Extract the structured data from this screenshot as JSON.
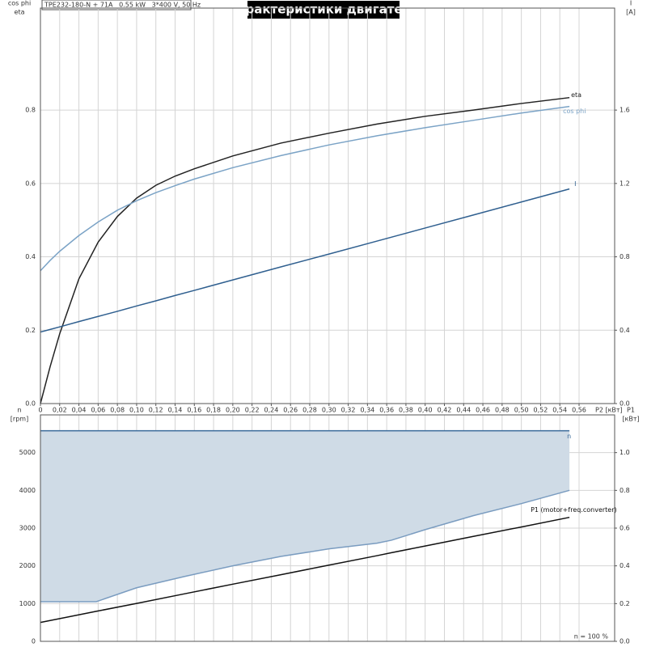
{
  "chart_data": [
    {
      "type": "line",
      "title": "Характеристики двигателя",
      "subtitle": "TPE232-180-N + 71A   0.55 kW   3*400 V, 50 Hz",
      "ylabel": [
        "cos phi",
        "eta"
      ],
      "y2label": [
        "I",
        "[A]"
      ],
      "xlabel": "P2 [кВт]",
      "x": [
        0,
        0.01,
        0.02,
        0.04,
        0.06,
        0.08,
        0.1,
        0.12,
        0.14,
        0.16,
        0.2,
        0.25,
        0.3,
        0.35,
        0.4,
        0.45,
        0.5,
        0.55
      ],
      "series": [
        {
          "name": "eta",
          "color": "#222222",
          "values": [
            0,
            0.1,
            0.19,
            0.34,
            0.44,
            0.51,
            0.56,
            0.595,
            0.62,
            0.64,
            0.675,
            0.71,
            0.737,
            0.762,
            0.783,
            0.8,
            0.818,
            0.834
          ]
        },
        {
          "name": "cos phi",
          "color": "#7ba3c6",
          "values": [
            0.362,
            0.39,
            0.415,
            0.458,
            0.495,
            0.527,
            0.553,
            0.575,
            0.594,
            0.612,
            0.643,
            0.676,
            0.705,
            0.73,
            0.752,
            0.772,
            0.792,
            0.81
          ]
        },
        {
          "name": "I",
          "color": "#2f5f8f",
          "axis": "y2",
          "values": [
            0.39,
            0.404,
            0.418,
            0.447,
            0.475,
            0.503,
            0.532,
            0.56,
            0.589,
            0.617,
            0.674,
            0.745,
            0.815,
            0.886,
            0.957,
            1.028,
            1.099,
            1.17
          ]
        }
      ],
      "xlim": [
        0,
        0.597
      ],
      "xticks": [
        0,
        {
          "value": 0.02,
          "label": "0,02"
        },
        {
          "value": 0.04,
          "label": "0,04"
        },
        {
          "value": 0.06,
          "label": "0,06"
        },
        {
          "value": 0.08,
          "label": "0,08"
        },
        {
          "value": 0.1,
          "label": "0,10"
        },
        {
          "value": 0.12,
          "label": "0,12"
        },
        {
          "value": 0.14,
          "label": "0,14"
        },
        {
          "value": 0.16,
          "label": "0,16"
        },
        {
          "value": 0.18,
          "label": "0,18"
        },
        {
          "value": 0.2,
          "label": "0,20"
        },
        {
          "value": 0.22,
          "label": "0,22"
        },
        {
          "value": 0.24,
          "label": "0,24"
        },
        {
          "value": 0.26,
          "label": "0,26"
        },
        {
          "value": 0.28,
          "label": "0,28"
        },
        {
          "value": 0.3,
          "label": "0,30"
        },
        {
          "value": 0.32,
          "label": "0,32"
        },
        {
          "value": 0.34,
          "label": "0,34"
        },
        {
          "value": 0.36,
          "label": "0,36"
        },
        {
          "value": 0.38,
          "label": "0,38"
        },
        {
          "value": 0.4,
          "label": "0,40"
        },
        {
          "value": 0.42,
          "label": "0,42"
        },
        {
          "value": 0.44,
          "label": "0,44"
        },
        {
          "value": 0.46,
          "label": "0,46"
        },
        {
          "value": 0.48,
          "label": "0,48"
        },
        {
          "value": 0.5,
          "label": "0,50"
        },
        {
          "value": 0.52,
          "label": "0,52"
        },
        {
          "value": 0.54,
          "label": "0,54"
        },
        {
          "value": 0.56,
          "label": "0,56"
        }
      ],
      "ylim": [
        0,
        1.078
      ],
      "yticks": [
        {
          "value": 0,
          "label": "0.0"
        },
        0.2,
        0.4,
        0.6,
        0.8
      ],
      "y2lim": [
        0,
        2.156
      ],
      "y2ticks": [
        {
          "value": 0,
          "label": "0.0"
        },
        0.4,
        0.8,
        1.2,
        1.6
      ],
      "grid": true
    },
    {
      "type": "line",
      "ylabel": [
        "n",
        "[rpm]"
      ],
      "y2label": [
        "P1",
        "[кВт]"
      ],
      "annotation": "n = 100 %",
      "x": [
        0,
        0.058,
        0.1,
        0.15,
        0.2,
        0.25,
        0.3,
        0.35,
        0.365,
        0.4,
        0.45,
        0.5,
        0.55
      ],
      "series": [
        {
          "name": "n",
          "color": "#3a6a9a",
          "values": [
            5580,
            5580,
            5580,
            5580,
            5580,
            5580,
            5580,
            5580,
            5580,
            5580,
            5580,
            5580,
            5580
          ]
        },
        {
          "color": "#7a9cc0",
          "values": [
            1050,
            1050,
            1420,
            1720,
            2000,
            2250,
            2450,
            2600,
            2680,
            2960,
            3330,
            3650,
            4000
          ]
        },
        {
          "name": "P1 (motor+freq.converter)",
          "color": "#111111",
          "axis": "y2",
          "values": [
            0.1,
            0.159,
            0.201,
            0.252,
            0.303,
            0.353,
            0.404,
            0.454,
            0.47,
            0.505,
            0.556,
            0.606,
            0.657
          ]
        }
      ],
      "fill_between": [
        0,
        1
      ],
      "fill_color": "#cfdbe6",
      "xlim": [
        0,
        0.597
      ],
      "ylim": [
        0,
        6000
      ],
      "yticks": [
        0,
        1000,
        2000,
        3000,
        4000,
        5000
      ],
      "y2lim": [
        0,
        1.2
      ],
      "y2ticks": [
        {
          "value": 0,
          "label": "0.0"
        },
        0.2,
        0.4,
        0.6,
        0.8,
        {
          "value": 1,
          "label": "1.0"
        }
      ],
      "grid": true
    }
  ]
}
